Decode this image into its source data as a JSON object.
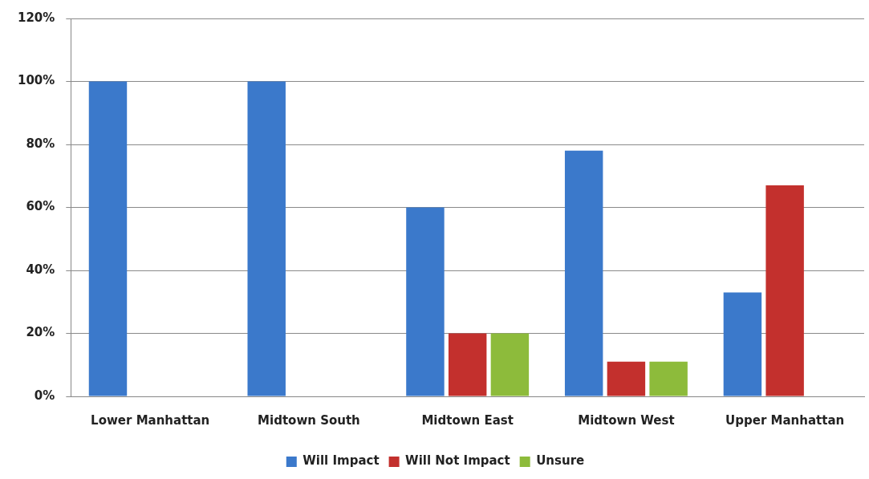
{
  "chart_data": {
    "type": "bar",
    "categories": [
      "Lower Manhattan",
      "Midtown South",
      "Midtown East",
      "Midtown West",
      "Upper Manhattan"
    ],
    "series": [
      {
        "name": "Will Impact",
        "color": "#3b79cb",
        "values": [
          100,
          100,
          60,
          78,
          33
        ]
      },
      {
        "name": "Will Not Impact",
        "color": "#c3302d",
        "values": [
          0,
          0,
          20,
          11,
          67
        ]
      },
      {
        "name": "Unsure",
        "color": "#8dbb3b",
        "values": [
          0,
          0,
          20,
          11,
          0
        ]
      }
    ],
    "ylim": [
      0,
      120
    ],
    "yticks": [
      {
        "value": 0,
        "label": "0%"
      },
      {
        "value": 20,
        "label": "20%"
      },
      {
        "value": 40,
        "label": "40%"
      },
      {
        "value": 60,
        "label": "60%"
      },
      {
        "value": 80,
        "label": "80%"
      },
      {
        "value": 100,
        "label": "100%"
      },
      {
        "value": 120,
        "label": "120%"
      }
    ],
    "grid": "y",
    "legend": "bottom"
  }
}
